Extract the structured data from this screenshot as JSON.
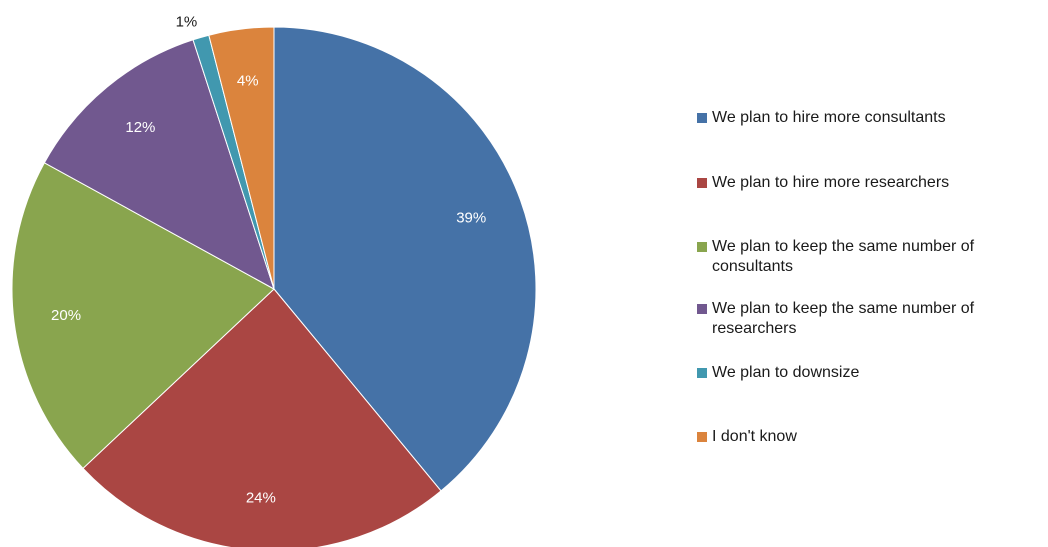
{
  "chart_data": {
    "type": "pie",
    "title": "",
    "categories": [
      "We plan to hire more consultants",
      "We plan to hire more researchers",
      "We plan to keep the same number of consultants",
      "We plan to keep the same number of researchers",
      "We plan to downsize",
      "I don't know"
    ],
    "values": [
      39,
      24,
      20,
      12,
      1,
      4
    ],
    "labels": [
      "39%",
      "24%",
      "20%",
      "12%",
      "1%",
      "4%"
    ],
    "colors": [
      "#4572a7",
      "#aa4643",
      "#89a54e",
      "#71588f",
      "#4198af",
      "#db843d"
    ],
    "legend_position": "right",
    "start_angle": "12 o'clock",
    "direction": "clockwise"
  }
}
